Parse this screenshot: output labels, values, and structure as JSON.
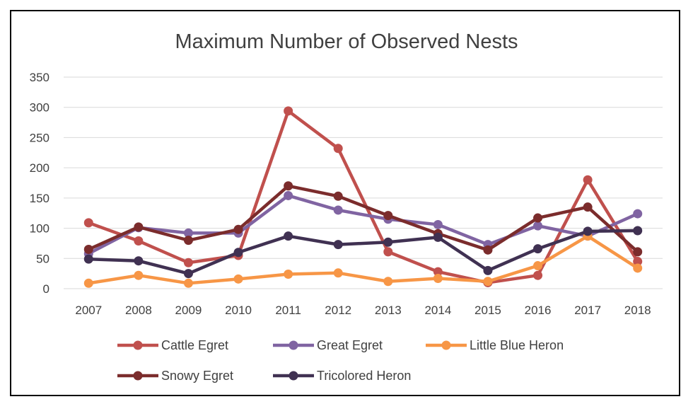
{
  "chart_data": {
    "type": "line",
    "title": "Maximum Number of Observed Nests",
    "xlabel": "",
    "ylabel": "",
    "categories": [
      "2007",
      "2008",
      "2009",
      "2010",
      "2011",
      "2012",
      "2013",
      "2014",
      "2015",
      "2016",
      "2017",
      "2018"
    ],
    "ylim": [
      0,
      350
    ],
    "yticks": [
      0,
      50,
      100,
      150,
      200,
      250,
      300,
      350
    ],
    "grid": true,
    "legend_position": "bottom",
    "series": [
      {
        "name": "Cattle Egret",
        "color": "#C0504D",
        "values": [
          109,
          79,
          43,
          55,
          294,
          232,
          61,
          28,
          10,
          22,
          180,
          45
        ]
      },
      {
        "name": "Great Egret",
        "color": "#8064A2",
        "values": [
          58,
          101,
          92,
          92,
          154,
          130,
          115,
          106,
          73,
          104,
          87,
          124
        ]
      },
      {
        "name": "Little Blue Heron",
        "color": "#F79646",
        "values": [
          9,
          22,
          9,
          16,
          24,
          26,
          12,
          17,
          12,
          38,
          87,
          34
        ]
      },
      {
        "name": "Snowy Egret",
        "color": "#7B2C2C",
        "values": [
          65,
          102,
          80,
          98,
          170,
          153,
          121,
          91,
          64,
          117,
          135,
          61
        ]
      },
      {
        "name": "Tricolored Heron",
        "color": "#403152",
        "values": [
          49,
          46,
          25,
          60,
          87,
          73,
          77,
          85,
          30,
          66,
          95,
          96
        ]
      }
    ]
  }
}
